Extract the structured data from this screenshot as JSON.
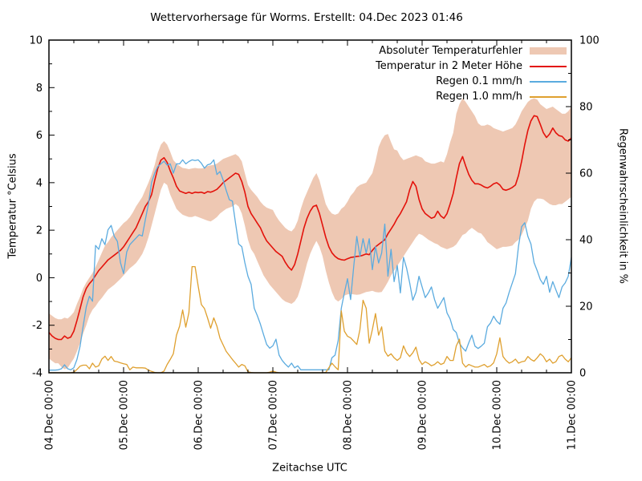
{
  "title": "Wettervorhersage für Worms. Erstellt: 04.Dec 2023 01:46",
  "colors": {
    "band": "#eec8b3",
    "temperature": "#e3120b",
    "rain01": "#5babdf",
    "rain10": "#dfa02f",
    "axis": "#000000",
    "background": "#ffffff"
  },
  "chart_data": {
    "type": "line",
    "title": "Wettervorhersage für Worms. Erstellt: 04.Dec 2023 01:46",
    "grid": "off",
    "legend_position": "top-right-inside",
    "x_axis": {
      "label": "Zeitachse UTC",
      "tick_labels": [
        "04.Dec 00:00",
        "05.Dec 00:00",
        "06.Dec 00:00",
        "07.Dec 00:00",
        "08.Dec 00:00",
        "09.Dec 00:00",
        "10.Dec 00:00",
        "11.Dec 00:00"
      ],
      "span_hours": 168,
      "major_tick_hours": 24,
      "minor_tick_hours": 8
    },
    "y_left": {
      "label": "Temperatur °Celsius",
      "min": -4,
      "max": 10,
      "ticks": [
        10,
        8,
        6,
        4,
        2,
        0,
        -2,
        -4
      ],
      "minor_step": 1
    },
    "y_right": {
      "label": "Regenwahrscheinlichkeit in %",
      "min": 0,
      "max": 100,
      "ticks": [
        100,
        80,
        60,
        40,
        20,
        0
      ],
      "minor_step": 10
    },
    "sample_interval_hours": 1,
    "series": [
      {
        "name": "Absoluter Temperaturfehler",
        "type": "band",
        "axis": "left",
        "color": "#eec8b3",
        "upper": [
          -1.5,
          -1.6,
          -1.7,
          -1.75,
          -1.75,
          -1.68,
          -1.72,
          -1.6,
          -1.45,
          -1.1,
          -0.8,
          -0.45,
          -0.2,
          0.0,
          0.2,
          0.45,
          0.75,
          1.05,
          1.35,
          1.5,
          1.7,
          1.85,
          2.0,
          2.15,
          2.3,
          2.4,
          2.55,
          2.75,
          3.0,
          3.2,
          3.4,
          3.7,
          4.0,
          4.35,
          4.75,
          5.25,
          5.6,
          5.75,
          5.6,
          5.3,
          4.95,
          4.8,
          4.7,
          4.62,
          4.6,
          4.57,
          4.6,
          4.62,
          4.6,
          4.6,
          4.62,
          4.7,
          4.73,
          4.75,
          4.8,
          4.9,
          5.0,
          5.05,
          5.1,
          5.15,
          5.2,
          5.1,
          4.9,
          4.4,
          3.9,
          3.7,
          3.55,
          3.4,
          3.2,
          3.05,
          2.95,
          2.9,
          2.85,
          2.6,
          2.4,
          2.25,
          2.1,
          2.0,
          1.95,
          2.1,
          2.4,
          2.9,
          3.3,
          3.6,
          3.9,
          4.2,
          4.4,
          4.1,
          3.6,
          3.1,
          2.85,
          2.7,
          2.65,
          2.7,
          2.9,
          3.0,
          3.2,
          3.45,
          3.6,
          3.8,
          3.9,
          3.95,
          4.0,
          4.2,
          4.4,
          4.9,
          5.5,
          5.8,
          6.0,
          6.05,
          5.7,
          5.4,
          5.35,
          5.1,
          4.95,
          5.0,
          5.05,
          5.1,
          5.15,
          5.1,
          5.05,
          4.9,
          4.85,
          4.8,
          4.8,
          4.85,
          4.9,
          4.85,
          5.2,
          5.7,
          6.1,
          6.9,
          7.3,
          7.55,
          7.4,
          7.2,
          7.0,
          6.8,
          6.5,
          6.4,
          6.4,
          6.45,
          6.4,
          6.3,
          6.25,
          6.2,
          6.15,
          6.2,
          6.25,
          6.3,
          6.45,
          6.7,
          7.0,
          7.2,
          7.4,
          7.5,
          7.55,
          7.5,
          7.3,
          7.2,
          7.1,
          7.15,
          7.2,
          7.1,
          7.0,
          6.9,
          6.9,
          7.0,
          7.2
        ],
        "lower": [
          -3.4,
          -3.5,
          -3.6,
          -3.6,
          -3.75,
          -3.85,
          -3.8,
          -3.6,
          -3.4,
          -3.1,
          -2.75,
          -2.35,
          -2.0,
          -1.6,
          -1.35,
          -1.2,
          -1.0,
          -0.85,
          -0.67,
          -0.5,
          -0.4,
          -0.3,
          -0.17,
          -0.05,
          0.1,
          0.25,
          0.4,
          0.5,
          0.62,
          0.8,
          1.0,
          1.3,
          1.7,
          2.2,
          2.7,
          3.2,
          3.7,
          4.0,
          3.9,
          3.5,
          3.2,
          2.9,
          2.76,
          2.65,
          2.6,
          2.55,
          2.55,
          2.6,
          2.55,
          2.5,
          2.45,
          2.4,
          2.37,
          2.45,
          2.55,
          2.7,
          2.8,
          2.9,
          2.95,
          3.0,
          3.1,
          3.0,
          2.7,
          2.2,
          1.6,
          1.2,
          1.0,
          0.7,
          0.4,
          0.1,
          -0.1,
          -0.3,
          -0.45,
          -0.6,
          -0.75,
          -0.9,
          -1.0,
          -1.05,
          -1.1,
          -1.0,
          -0.8,
          -0.4,
          0.1,
          0.6,
          1.0,
          1.3,
          1.55,
          1.3,
          0.9,
          0.3,
          -0.2,
          -0.6,
          -0.9,
          -1.0,
          -0.9,
          -0.75,
          -0.7,
          -0.68,
          -0.7,
          -0.72,
          -0.7,
          -0.65,
          -0.6,
          -0.58,
          -0.55,
          -0.6,
          -0.62,
          -0.6,
          -0.4,
          -0.17,
          0.1,
          0.3,
          0.5,
          0.7,
          0.9,
          1.1,
          1.3,
          1.5,
          1.7,
          1.85,
          1.8,
          1.7,
          1.6,
          1.53,
          1.45,
          1.4,
          1.3,
          1.25,
          1.2,
          1.25,
          1.3,
          1.4,
          1.6,
          1.8,
          1.86,
          2.0,
          2.1,
          2.0,
          1.9,
          1.86,
          1.7,
          1.5,
          1.4,
          1.3,
          1.2,
          1.25,
          1.3,
          1.3,
          1.32,
          1.35,
          1.5,
          1.6,
          1.8,
          2.1,
          2.4,
          2.9,
          3.2,
          3.33,
          3.33,
          3.3,
          3.2,
          3.1,
          3.05,
          3.05,
          3.1,
          3.1,
          3.2,
          3.3,
          3.4
        ]
      },
      {
        "name": "Temperatur in 2 Meter Höhe",
        "type": "line",
        "axis": "left",
        "color": "#e3120b",
        "values": [
          -2.3,
          -2.45,
          -2.55,
          -2.6,
          -2.6,
          -2.45,
          -2.55,
          -2.5,
          -2.25,
          -1.8,
          -1.3,
          -0.8,
          -0.45,
          -0.25,
          -0.1,
          0.1,
          0.3,
          0.45,
          0.6,
          0.75,
          0.85,
          0.95,
          1.05,
          1.15,
          1.3,
          1.5,
          1.7,
          1.9,
          2.1,
          2.4,
          2.7,
          3.0,
          3.2,
          3.5,
          4.1,
          4.6,
          4.95,
          5.05,
          4.85,
          4.5,
          4.2,
          3.85,
          3.65,
          3.6,
          3.55,
          3.6,
          3.55,
          3.6,
          3.58,
          3.6,
          3.55,
          3.62,
          3.6,
          3.65,
          3.72,
          3.85,
          4.0,
          4.1,
          4.2,
          4.3,
          4.4,
          4.35,
          4.05,
          3.6,
          3.0,
          2.7,
          2.5,
          2.3,
          2.1,
          1.8,
          1.55,
          1.4,
          1.25,
          1.1,
          1.0,
          0.9,
          0.65,
          0.45,
          0.32,
          0.55,
          1.0,
          1.55,
          2.1,
          2.5,
          2.8,
          3.0,
          3.05,
          2.7,
          2.2,
          1.7,
          1.3,
          1.05,
          0.9,
          0.8,
          0.76,
          0.74,
          0.8,
          0.85,
          0.87,
          0.9,
          0.91,
          0.95,
          1.0,
          0.97,
          1.15,
          1.3,
          1.4,
          1.5,
          1.6,
          1.85,
          2.05,
          2.25,
          2.5,
          2.7,
          2.95,
          3.2,
          3.7,
          4.05,
          3.85,
          3.3,
          2.9,
          2.7,
          2.6,
          2.5,
          2.55,
          2.8,
          2.6,
          2.5,
          2.7,
          3.1,
          3.55,
          4.2,
          4.8,
          5.1,
          4.7,
          4.35,
          4.1,
          3.95,
          3.95,
          3.9,
          3.82,
          3.78,
          3.85,
          3.95,
          4.0,
          3.9,
          3.72,
          3.68,
          3.73,
          3.8,
          3.9,
          4.3,
          4.9,
          5.6,
          6.2,
          6.6,
          6.82,
          6.78,
          6.45,
          6.1,
          5.9,
          6.05,
          6.3,
          6.1,
          5.98,
          5.95,
          5.8,
          5.75,
          5.88
        ]
      },
      {
        "name": "Regen 0.1 mm/h",
        "type": "line",
        "axis": "right",
        "color": "#5babdf",
        "values": [
          0.8,
          0.8,
          0.8,
          0.9,
          1.2,
          2.4,
          1.2,
          0.9,
          1.5,
          4,
          8,
          14,
          19.8,
          23,
          21.5,
          38.3,
          37.1,
          40.3,
          38.5,
          43,
          44.3,
          41,
          39.5,
          33.1,
          29.8,
          36.3,
          38.5,
          39.5,
          40.5,
          41.5,
          41.1,
          46,
          50.8,
          57.2,
          60,
          62,
          62.8,
          63.6,
          62.4,
          62.8,
          60,
          62.8,
          62.8,
          64,
          62.8,
          63.5,
          64,
          63.8,
          64,
          63,
          61.5,
          62.5,
          62.8,
          64,
          59.6,
          60.5,
          58,
          54.8,
          52,
          51.6,
          45,
          38.7,
          37.9,
          33.1,
          29,
          26.6,
          19.4,
          17.2,
          14.6,
          11.5,
          8.5,
          7.4,
          8.1,
          10.1,
          5.3,
          3.7,
          2.6,
          1.7,
          2.9,
          1.5,
          2.1,
          0.9,
          0.9,
          0.9,
          0.9,
          0.9,
          0.9,
          0.9,
          0.9,
          0.9,
          0.9,
          4.5,
          5.3,
          9.7,
          19.4,
          24,
          28.3,
          22,
          32,
          41,
          35,
          40.3,
          36,
          40.3,
          31,
          38,
          33,
          36,
          44.7,
          29,
          37.1,
          27.4,
          32.3,
          24,
          34.7,
          31.5,
          27,
          21.8,
          24.2,
          29,
          25.8,
          22.6,
          24,
          25.8,
          22,
          19.4,
          21,
          22.6,
          18,
          16.2,
          13,
          12.1,
          8.9,
          7.5,
          6.5,
          9,
          11.3,
          8,
          7.3,
          8,
          8.9,
          13.8,
          15,
          17,
          15.5,
          14.6,
          19.4,
          21,
          24.2,
          27,
          29.8,
          38,
          43.9,
          45.1,
          41,
          38.7,
          33.1,
          30.7,
          28,
          26.6,
          29,
          24.2,
          27.4,
          25,
          22.6,
          25.8,
          27,
          29,
          34.7
        ]
      },
      {
        "name": "Regen 1.0 mm/h",
        "type": "line",
        "axis": "right",
        "color": "#dfa02f",
        "values": [
          0,
          0,
          0,
          0,
          0,
          0,
          0,
          0,
          0.2,
          1,
          2,
          2.3,
          2.3,
          1.2,
          2.9,
          1.7,
          2.1,
          4.1,
          5.0,
          3.7,
          4.9,
          3.5,
          3.3,
          3.0,
          2.7,
          2.5,
          0.9,
          1.7,
          1.5,
          1.5,
          1.5,
          1.4,
          0.8,
          0.4,
          0.1,
          0,
          0,
          0.5,
          2.5,
          4,
          5.7,
          11.3,
          14,
          18.9,
          13.7,
          18.1,
          31.9,
          31.9,
          26,
          20.5,
          19.3,
          16.5,
          13.4,
          16.5,
          14,
          10.4,
          8.4,
          6.4,
          5.2,
          4.0,
          2.9,
          1.7,
          2.5,
          2.1,
          0.3,
          0.1,
          0,
          0,
          0,
          0,
          0,
          0.2,
          0.5,
          0.2,
          0,
          0,
          0,
          0,
          0,
          0,
          0,
          0,
          0,
          0,
          0,
          0,
          0,
          0,
          0,
          0.1,
          1.5,
          2.9,
          1.8,
          0.9,
          18.6,
          12.5,
          11,
          10.5,
          9.5,
          8.5,
          13,
          21.8,
          19.4,
          8.9,
          13,
          17.8,
          11.3,
          13.8,
          6.5,
          5,
          5.7,
          4.5,
          3.7,
          4.5,
          8.1,
          6,
          4.9,
          6,
          7.7,
          4,
          2.5,
          3.3,
          2.8,
          2.1,
          2.5,
          3.3,
          2.5,
          2.9,
          4.9,
          3.7,
          3.7,
          8.1,
          10.1,
          2.9,
          1.7,
          2.5,
          2.1,
          1.7,
          1.7,
          2.1,
          2.5,
          1.7,
          2.1,
          3,
          5.7,
          10.5,
          4.9,
          3.7,
          2.9,
          3.3,
          4.1,
          2.9,
          3.3,
          3.5,
          4.9,
          4,
          3.5,
          4.5,
          5.7,
          4.9,
          3.3,
          4.1,
          2.9,
          3.3,
          4.9,
          5.3,
          4.1,
          3.3,
          4.5
        ]
      }
    ]
  }
}
